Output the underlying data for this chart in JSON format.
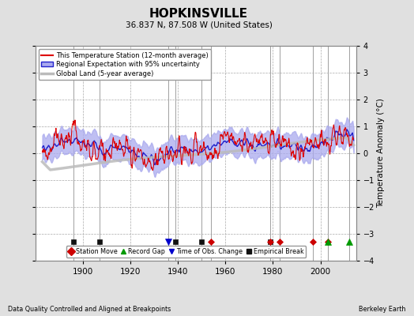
{
  "title": "HOPKINSVILLE",
  "subtitle": "36.837 N, 87.508 W (United States)",
  "ylabel": "Temperature Anomaly (°C)",
  "ylim": [
    -4,
    4
  ],
  "yticks": [
    -4,
    -3,
    -2,
    -1,
    0,
    1,
    2,
    3,
    4
  ],
  "xlim": [
    1880,
    2015
  ],
  "xticks": [
    1900,
    1920,
    1940,
    1960,
    1980,
    2000
  ],
  "background_color": "#e0e0e0",
  "plot_bg_color": "#ffffff",
  "grid_color": "#aaaaaa",
  "footer_left": "Data Quality Controlled and Aligned at Breakpoints",
  "footer_right": "Berkeley Earth",
  "station_moves": [
    1954,
    1979,
    1983,
    1997,
    2003
  ],
  "record_gaps": [
    2003,
    2012
  ],
  "obs_changes": [
    1936
  ],
  "empirical_breaks": [
    1896,
    1907,
    1939,
    1950,
    1979
  ],
  "marker_y": -3.3,
  "vline_color": "#888888",
  "vline_lw": 0.7,
  "vline_years": [
    1896,
    1907,
    1936,
    1939,
    1950,
    1954,
    1979,
    1983,
    1997,
    2003,
    2012
  ],
  "red_color": "#dd0000",
  "blue_color": "#2222cc",
  "blue_fill_color": "#aaaaee",
  "gray_color": "#bbbbbb",
  "years_start": 1883,
  "years_end": 2014,
  "red_seed": 77,
  "blue_seed": 88,
  "red_noise_std": 0.85,
  "blue_noise_std": 0.35,
  "uncertainty_band": 0.45
}
